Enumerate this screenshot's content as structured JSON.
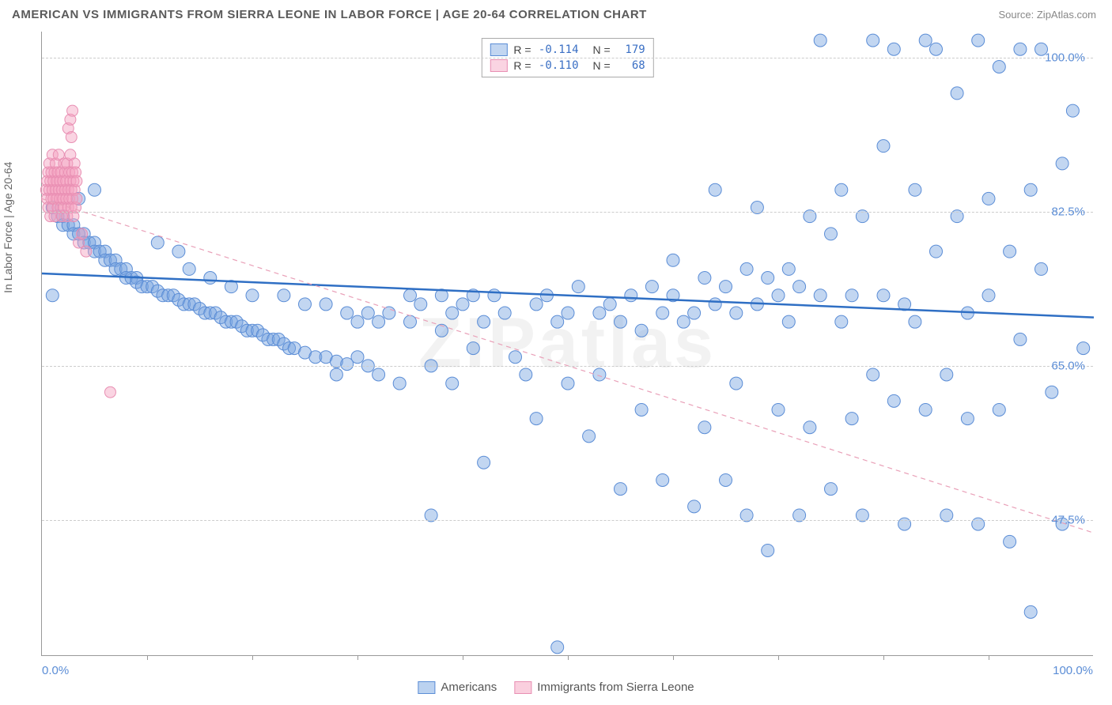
{
  "title": "AMERICAN VS IMMIGRANTS FROM SIERRA LEONE IN LABOR FORCE | AGE 20-64 CORRELATION CHART",
  "source": "Source: ZipAtlas.com",
  "watermark": "ZIPatlas",
  "y_axis_label": "In Labor Force | Age 20-64",
  "chart": {
    "type": "scatter",
    "xlim": [
      0,
      100
    ],
    "ylim": [
      32,
      103
    ],
    "x_min_label": "0.0%",
    "x_max_label": "100.0%",
    "y_ticks": [
      47.5,
      65.0,
      82.5,
      100.0
    ],
    "y_tick_labels": [
      "47.5%",
      "65.0%",
      "82.5%",
      "100.0%"
    ],
    "x_tick_positions": [
      10,
      20,
      30,
      40,
      50,
      60,
      70,
      80,
      90
    ],
    "background_color": "#ffffff",
    "grid_color": "#cccccc",
    "axis_color": "#999999",
    "tick_label_color": "#5b8dd6",
    "series": [
      {
        "name": "Americans",
        "color_fill": "rgba(120,165,225,0.45)",
        "color_stroke": "#5b8dd6",
        "marker_radius": 8,
        "trend": {
          "type": "solid",
          "color": "#2f6fc4",
          "width": 2.5,
          "y_at_x0": 75.5,
          "y_at_x100": 70.5
        },
        "legend": {
          "R_label": "R =",
          "R": "-0.114",
          "N_label": "N =",
          "N": "179"
        },
        "points": [
          [
            1,
            73
          ],
          [
            1,
            83
          ],
          [
            1.5,
            82
          ],
          [
            2,
            82
          ],
          [
            2,
            81
          ],
          [
            2.5,
            81
          ],
          [
            3,
            81
          ],
          [
            3,
            80
          ],
          [
            3.5,
            80
          ],
          [
            3.5,
            84
          ],
          [
            4,
            80
          ],
          [
            4,
            79
          ],
          [
            4.5,
            79
          ],
          [
            5,
            79
          ],
          [
            5,
            78
          ],
          [
            5,
            85
          ],
          [
            5.5,
            78
          ],
          [
            6,
            78
          ],
          [
            6,
            77
          ],
          [
            6.5,
            77
          ],
          [
            7,
            77
          ],
          [
            7,
            76
          ],
          [
            7.5,
            76
          ],
          [
            8,
            76
          ],
          [
            8,
            75
          ],
          [
            8.5,
            75
          ],
          [
            9,
            75
          ],
          [
            9,
            74.5
          ],
          [
            9.5,
            74
          ],
          [
            10,
            74
          ],
          [
            10.5,
            74
          ],
          [
            11,
            73.5
          ],
          [
            11,
            79
          ],
          [
            11.5,
            73
          ],
          [
            12,
            73
          ],
          [
            12.5,
            73
          ],
          [
            13,
            72.5
          ],
          [
            13,
            78
          ],
          [
            13.5,
            72
          ],
          [
            14,
            72
          ],
          [
            14,
            76
          ],
          [
            14.5,
            72
          ],
          [
            15,
            71.5
          ],
          [
            15.5,
            71
          ],
          [
            16,
            71
          ],
          [
            16,
            75
          ],
          [
            16.5,
            71
          ],
          [
            17,
            70.5
          ],
          [
            17.5,
            70
          ],
          [
            18,
            70
          ],
          [
            18,
            74
          ],
          [
            18.5,
            70
          ],
          [
            19,
            69.5
          ],
          [
            19.5,
            69
          ],
          [
            20,
            69
          ],
          [
            20,
            73
          ],
          [
            20.5,
            69
          ],
          [
            21,
            68.5
          ],
          [
            21.5,
            68
          ],
          [
            22,
            68
          ],
          [
            22.5,
            68
          ],
          [
            23,
            67.5
          ],
          [
            23,
            73
          ],
          [
            23.5,
            67
          ],
          [
            24,
            67
          ],
          [
            25,
            66.5
          ],
          [
            25,
            72
          ],
          [
            26,
            66
          ],
          [
            27,
            66
          ],
          [
            27,
            72
          ],
          [
            28,
            65.5
          ],
          [
            28,
            64
          ],
          [
            29,
            65.2
          ],
          [
            29,
            71
          ],
          [
            30,
            70
          ],
          [
            30,
            66
          ],
          [
            31,
            65
          ],
          [
            31,
            71
          ],
          [
            32,
            70
          ],
          [
            32,
            64
          ],
          [
            33,
            71
          ],
          [
            34,
            63
          ],
          [
            35,
            70
          ],
          [
            35,
            73
          ],
          [
            36,
            72
          ],
          [
            37,
            65
          ],
          [
            37,
            48
          ],
          [
            38,
            73
          ],
          [
            38,
            69
          ],
          [
            39,
            71
          ],
          [
            39,
            63
          ],
          [
            40,
            72
          ],
          [
            41,
            73
          ],
          [
            41,
            67
          ],
          [
            42,
            54
          ],
          [
            42,
            70
          ],
          [
            43,
            73
          ],
          [
            44,
            71
          ],
          [
            45,
            66
          ],
          [
            46,
            64
          ],
          [
            47,
            72
          ],
          [
            47,
            59
          ],
          [
            48,
            73
          ],
          [
            49,
            70
          ],
          [
            49,
            33
          ],
          [
            50,
            71
          ],
          [
            50,
            63
          ],
          [
            51,
            74
          ],
          [
            52,
            57
          ],
          [
            53,
            71
          ],
          [
            53,
            64
          ],
          [
            54,
            72
          ],
          [
            55,
            70
          ],
          [
            55,
            51
          ],
          [
            56,
            73
          ],
          [
            57,
            69
          ],
          [
            57,
            60
          ],
          [
            58,
            74
          ],
          [
            59,
            71
          ],
          [
            59,
            52
          ],
          [
            60,
            73
          ],
          [
            60,
            77
          ],
          [
            61,
            70
          ],
          [
            62,
            71
          ],
          [
            62,
            49
          ],
          [
            63,
            75
          ],
          [
            63,
            58
          ],
          [
            64,
            72
          ],
          [
            64,
            85
          ],
          [
            65,
            74
          ],
          [
            65,
            52
          ],
          [
            66,
            71
          ],
          [
            66,
            63
          ],
          [
            67,
            76
          ],
          [
            67,
            48
          ],
          [
            68,
            72
          ],
          [
            68,
            83
          ],
          [
            69,
            75
          ],
          [
            69,
            44
          ],
          [
            70,
            73
          ],
          [
            70,
            60
          ],
          [
            71,
            76
          ],
          [
            71,
            70
          ],
          [
            72,
            74
          ],
          [
            72,
            48
          ],
          [
            73,
            82
          ],
          [
            73,
            58
          ],
          [
            74,
            73
          ],
          [
            74,
            102
          ],
          [
            75,
            80
          ],
          [
            75,
            51
          ],
          [
            76,
            70
          ],
          [
            76,
            85
          ],
          [
            77,
            73
          ],
          [
            77,
            59
          ],
          [
            78,
            82
          ],
          [
            78,
            48
          ],
          [
            79,
            102
          ],
          [
            79,
            64
          ],
          [
            80,
            73
          ],
          [
            80,
            90
          ],
          [
            81,
            61
          ],
          [
            81,
            101
          ],
          [
            82,
            72
          ],
          [
            82,
            47
          ],
          [
            83,
            85
          ],
          [
            83,
            70
          ],
          [
            84,
            102
          ],
          [
            84,
            60
          ],
          [
            85,
            78
          ],
          [
            85,
            101
          ],
          [
            86,
            64
          ],
          [
            86,
            48
          ],
          [
            87,
            82
          ],
          [
            87,
            96
          ],
          [
            88,
            71
          ],
          [
            88,
            59
          ],
          [
            89,
            102
          ],
          [
            89,
            47
          ],
          [
            90,
            84
          ],
          [
            90,
            73
          ],
          [
            91,
            99
          ],
          [
            91,
            60
          ],
          [
            92,
            78
          ],
          [
            92,
            45
          ],
          [
            93,
            101
          ],
          [
            93,
            68
          ],
          [
            94,
            85
          ],
          [
            94,
            37
          ],
          [
            95,
            76
          ],
          [
            95,
            101
          ],
          [
            96,
            62
          ],
          [
            97,
            88
          ],
          [
            97,
            47
          ],
          [
            98,
            94
          ],
          [
            99,
            67
          ]
        ]
      },
      {
        "name": "Immigrants from Sierra Leone",
        "color_fill": "rgba(245,160,190,0.45)",
        "color_stroke": "#e88fb3",
        "marker_radius": 7,
        "trend": {
          "type": "dashed",
          "color": "#e9a0b8",
          "width": 1.2,
          "y_at_x0": 84,
          "y_at_x100": 46
        },
        "legend": {
          "R_label": "R =",
          "R": "-0.110",
          "N_label": "N =",
          "N": "68"
        },
        "points": [
          [
            0.4,
            85
          ],
          [
            0.5,
            86
          ],
          [
            0.5,
            84
          ],
          [
            0.6,
            87
          ],
          [
            0.6,
            83
          ],
          [
            0.7,
            88
          ],
          [
            0.7,
            85
          ],
          [
            0.8,
            86
          ],
          [
            0.8,
            82
          ],
          [
            0.9,
            84
          ],
          [
            0.9,
            87
          ],
          [
            1.0,
            85
          ],
          [
            1.0,
            83
          ],
          [
            1.0,
            89
          ],
          [
            1.1,
            86
          ],
          [
            1.1,
            84
          ],
          [
            1.2,
            87
          ],
          [
            1.2,
            82
          ],
          [
            1.3,
            85
          ],
          [
            1.3,
            88
          ],
          [
            1.4,
            84
          ],
          [
            1.4,
            86
          ],
          [
            1.5,
            83
          ],
          [
            1.5,
            87
          ],
          [
            1.6,
            85
          ],
          [
            1.6,
            89
          ],
          [
            1.7,
            84
          ],
          [
            1.7,
            86
          ],
          [
            1.8,
            83
          ],
          [
            1.8,
            87
          ],
          [
            1.9,
            85
          ],
          [
            1.9,
            82
          ],
          [
            2.0,
            86
          ],
          [
            2.0,
            84
          ],
          [
            2.1,
            88
          ],
          [
            2.1,
            83
          ],
          [
            2.2,
            85
          ],
          [
            2.2,
            87
          ],
          [
            2.3,
            84
          ],
          [
            2.3,
            86
          ],
          [
            2.4,
            82
          ],
          [
            2.4,
            88
          ],
          [
            2.5,
            85
          ],
          [
            2.5,
            83
          ],
          [
            2.6,
            87
          ],
          [
            2.6,
            84
          ],
          [
            2.7,
            86
          ],
          [
            2.7,
            89
          ],
          [
            2.8,
            83
          ],
          [
            2.8,
            85
          ],
          [
            2.9,
            87
          ],
          [
            2.9,
            84
          ],
          [
            3.0,
            86
          ],
          [
            3.0,
            82
          ],
          [
            3.1,
            88
          ],
          [
            3.1,
            85
          ],
          [
            3.2,
            83
          ],
          [
            3.2,
            87
          ],
          [
            3.3,
            84
          ],
          [
            3.3,
            86
          ],
          [
            2.5,
            92
          ],
          [
            2.7,
            93
          ],
          [
            2.8,
            91
          ],
          [
            2.9,
            94
          ],
          [
            3.5,
            79
          ],
          [
            3.8,
            80
          ],
          [
            4.2,
            78
          ],
          [
            6.5,
            62
          ]
        ]
      }
    ]
  },
  "legend_bottom": [
    {
      "label": "Americans",
      "fill": "rgba(120,165,225,0.5)",
      "stroke": "#5b8dd6"
    },
    {
      "label": "Immigrants from Sierra Leone",
      "fill": "rgba(245,160,190,0.5)",
      "stroke": "#e88fb3"
    }
  ]
}
